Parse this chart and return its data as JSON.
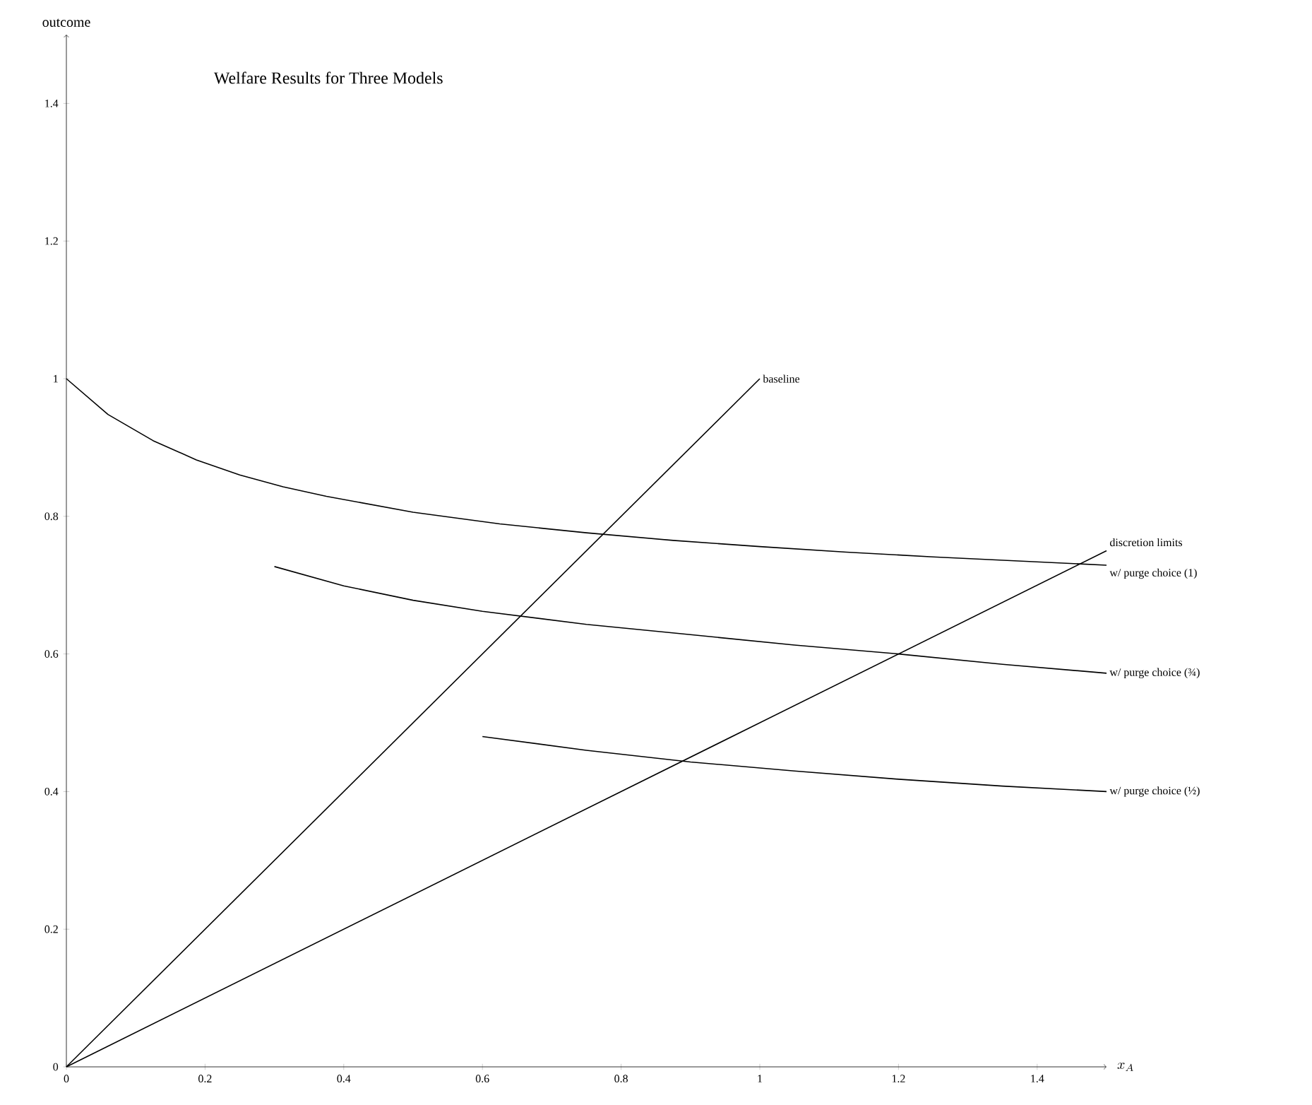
{
  "chart_data": {
    "type": "line",
    "title": "Welfare Results for Three Models",
    "xlabel": "x_A",
    "ylabel": "outcome",
    "xlim": [
      0,
      1.5
    ],
    "ylim": [
      0,
      1.5
    ],
    "xticks": [
      0,
      0.2,
      0.4,
      0.6,
      0.8,
      1,
      1.2,
      1.4
    ],
    "yticks": [
      0,
      0.2,
      0.4,
      0.6,
      0.8,
      1,
      1.2,
      1.4
    ],
    "marker": "none",
    "line_style": "solid",
    "series": [
      {
        "name": "baseline",
        "color": "#000000",
        "x": [
          0,
          1
        ],
        "values": [
          0,
          1
        ]
      },
      {
        "name": "discretion limits",
        "color": "#000000",
        "x": [
          0,
          1.5
        ],
        "values": [
          0,
          0.75
        ]
      },
      {
        "name": "w/ purge choice (1)",
        "color": "#000000",
        "x": [
          0,
          0.06,
          0.125,
          0.1875,
          0.25,
          0.3125,
          0.375,
          0.5,
          0.625,
          0.75,
          0.875,
          1.0,
          1.125,
          1.25,
          1.375,
          1.5
        ],
        "values": [
          1,
          0.948,
          0.91,
          0.882,
          0.86,
          0.843,
          0.829,
          0.806,
          0.789,
          0.776,
          0.765,
          0.756,
          0.748,
          0.741,
          0.735,
          0.729
        ]
      },
      {
        "name": "w/ purge choice (¾)",
        "color": "#000000",
        "x": [
          0.3,
          0.4,
          0.5,
          0.6,
          0.75,
          0.9,
          1.05,
          1.2,
          1.35,
          1.5
        ],
        "values": [
          0.727,
          0.699,
          0.678,
          0.662,
          0.643,
          0.628,
          0.613,
          0.6,
          0.585,
          0.572
        ]
      },
      {
        "name": "w/ purge choice (½)",
        "color": "#000000",
        "x": [
          0.6,
          0.75,
          0.9,
          1.05,
          1.2,
          1.35,
          1.5
        ],
        "values": [
          0.48,
          0.46,
          0.443,
          0.43,
          0.418,
          0.408,
          0.4
        ]
      }
    ]
  }
}
